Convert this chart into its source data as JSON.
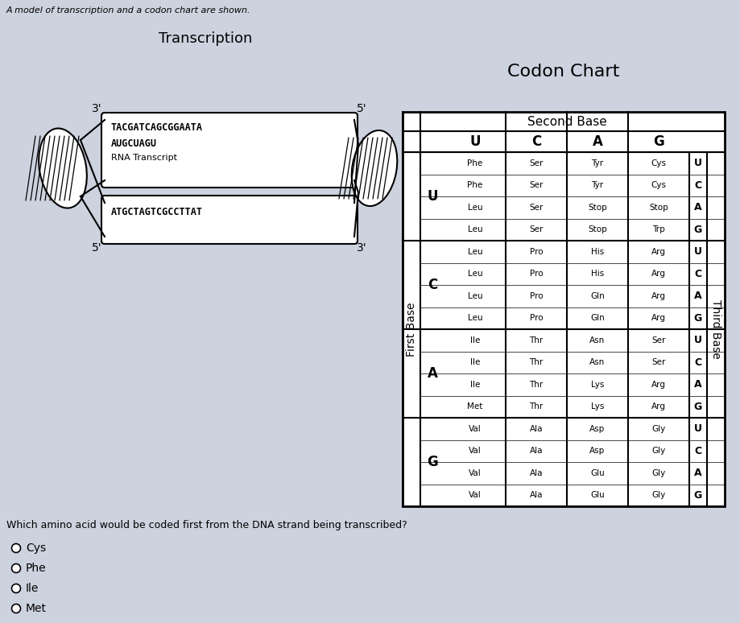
{
  "title_text": "A model of transcription and a codon chart are shown.",
  "bg_color": "#cdd2df",
  "codon_title": "Codon Chart",
  "second_base_label": "Second Base",
  "first_base_label": "First Base",
  "third_base_label": "Third Base",
  "second_base_headers": [
    "U",
    "C",
    "A",
    "G"
  ],
  "first_base_labels": [
    "U",
    "C",
    "A",
    "G"
  ],
  "third_base_labels": [
    "U",
    "C",
    "A",
    "G",
    "U",
    "C",
    "A",
    "G",
    "U",
    "C",
    "A",
    "G",
    "U",
    "C",
    "A",
    "G"
  ],
  "codon_data": [
    [
      "Phe",
      "Ser",
      "Tyr",
      "Cys"
    ],
    [
      "Phe",
      "Ser",
      "Tyr",
      "Cys"
    ],
    [
      "Leu",
      "Ser",
      "Stop",
      "Stop"
    ],
    [
      "Leu",
      "Ser",
      "Stop",
      "Trp"
    ],
    [
      "Leu",
      "Pro",
      "His",
      "Arg"
    ],
    [
      "Leu",
      "Pro",
      "His",
      "Arg"
    ],
    [
      "Leu",
      "Pro",
      "Gln",
      "Arg"
    ],
    [
      "Leu",
      "Pro",
      "Gln",
      "Arg"
    ],
    [
      "Ile",
      "Thr",
      "Asn",
      "Ser"
    ],
    [
      "Ile",
      "Thr",
      "Asn",
      "Ser"
    ],
    [
      "Ile",
      "Thr",
      "Lys",
      "Arg"
    ],
    [
      "Met",
      "Thr",
      "Lys",
      "Arg"
    ],
    [
      "Val",
      "Ala",
      "Asp",
      "Gly"
    ],
    [
      "Val",
      "Ala",
      "Asp",
      "Gly"
    ],
    [
      "Val",
      "Ala",
      "Glu",
      "Gly"
    ],
    [
      "Val",
      "Ala",
      "Glu",
      "Gly"
    ]
  ],
  "transcription_title": "Transcription",
  "dna_template": "TACGATCAGCGGAATA",
  "rna_transcript": "AUGCUAGU",
  "rna_label": "RNA Transcript",
  "dna_coding": "ATGCTAGTCGCCTTAT",
  "question_text": "Which amino acid would be coded first from the DNA strand being transcribed?",
  "choices": [
    "Cys",
    "Phe",
    "Ile",
    "Met"
  ],
  "cell_font_size": 7.5,
  "header_font_size": 11
}
